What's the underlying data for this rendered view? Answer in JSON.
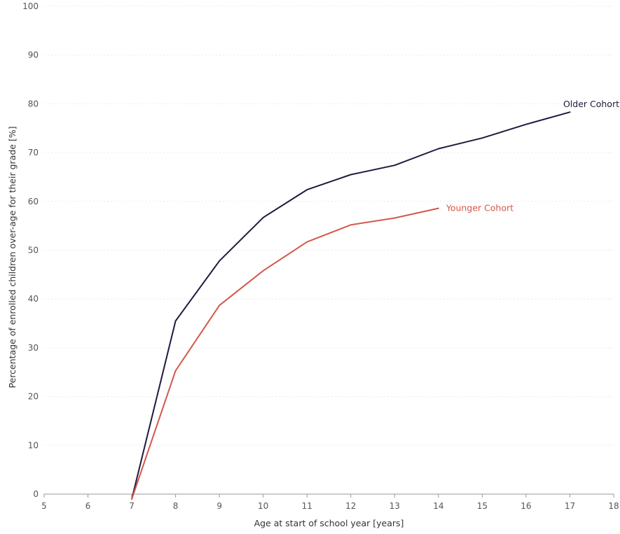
{
  "chart_data": {
    "type": "line",
    "title": "",
    "xlabel": "Age at start of school year [years]",
    "ylabel": "Percentage of enrolled children over-age for their grade [%]",
    "xlim": [
      5,
      18
    ],
    "ylim": [
      0,
      100
    ],
    "x_ticks": [
      5,
      6,
      7,
      8,
      9,
      10,
      11,
      12,
      13,
      14,
      15,
      16,
      17,
      18
    ],
    "y_ticks": [
      0,
      10,
      20,
      30,
      40,
      50,
      60,
      70,
      80,
      90,
      100
    ],
    "grid": "horizontal",
    "legend": "direct labels at line ends",
    "series": [
      {
        "name": "Older Cohort",
        "color": "#1f1a3d",
        "x": [
          7,
          8,
          9,
          10,
          11,
          12,
          13,
          14,
          15,
          16,
          17
        ],
        "values": [
          -1,
          35.5,
          47.8,
          56.7,
          62.4,
          65.5,
          67.4,
          70.8,
          73.0,
          75.8,
          78.3
        ]
      },
      {
        "name": "Younger Cohort",
        "color": "#d4574a",
        "x": [
          7,
          8,
          9,
          10,
          11,
          12,
          13,
          14
        ],
        "values": [
          -1,
          25.3,
          38.7,
          45.8,
          51.7,
          55.2,
          56.6,
          58.6
        ]
      }
    ]
  }
}
